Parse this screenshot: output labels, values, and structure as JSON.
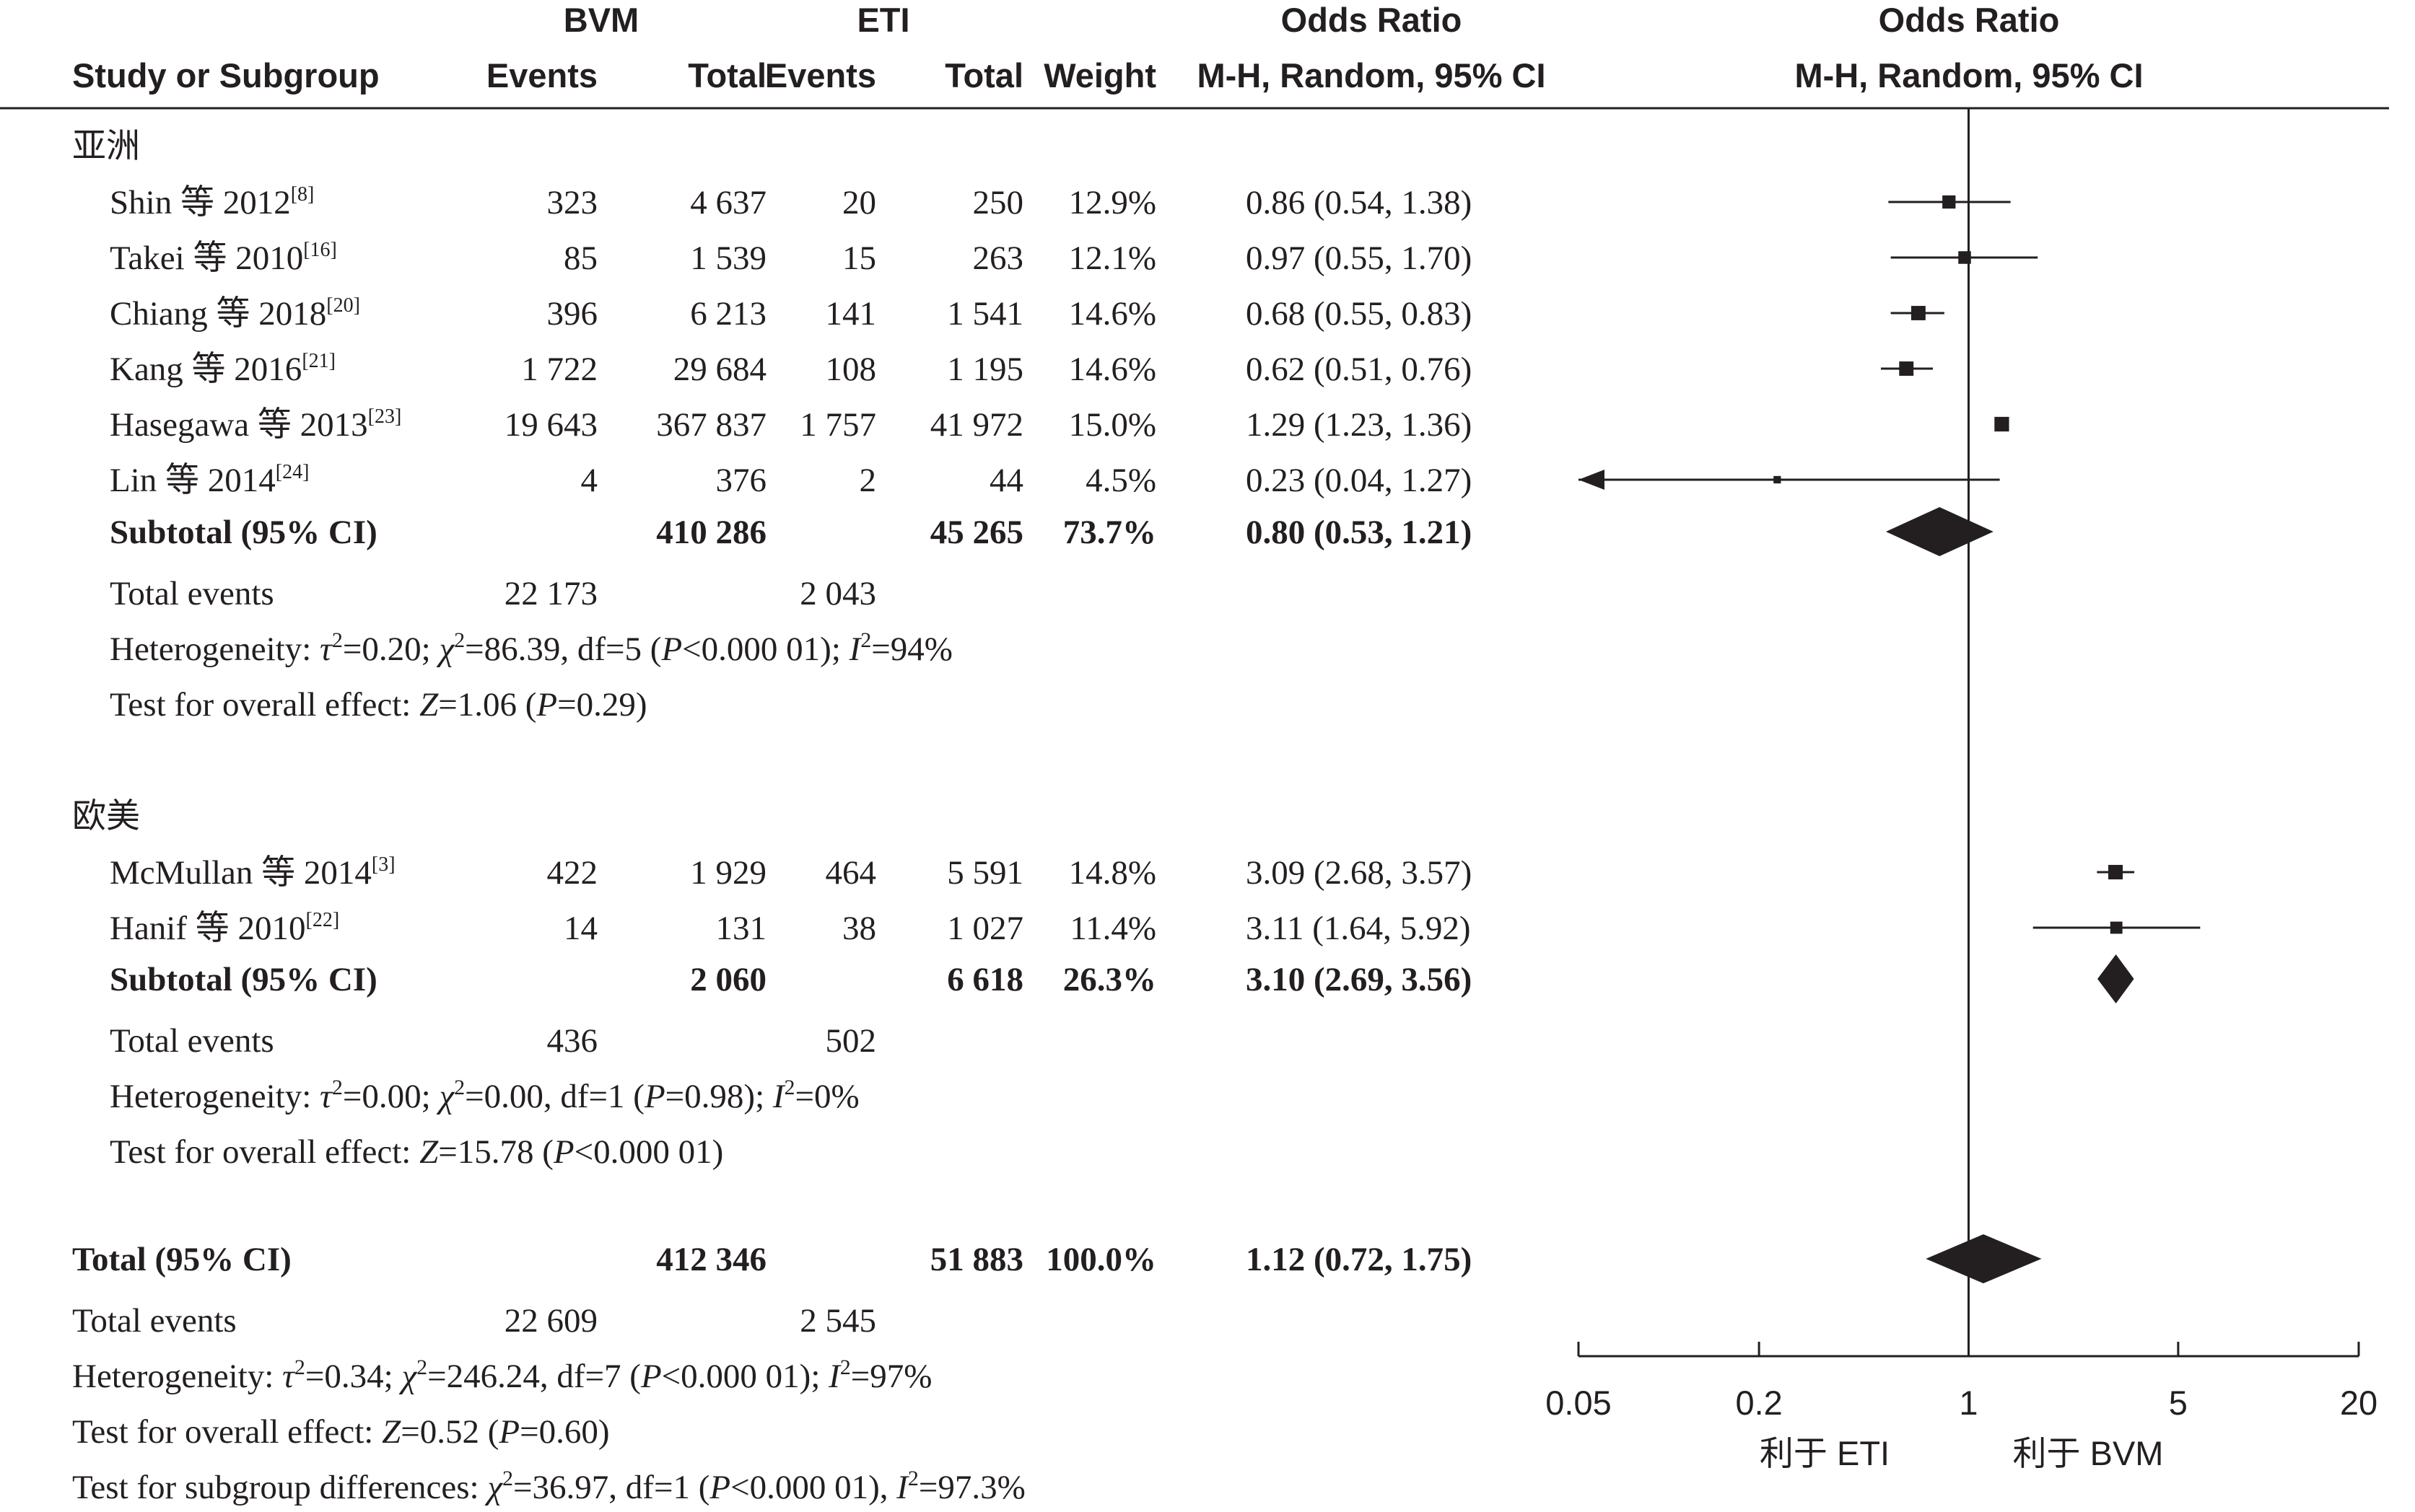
{
  "chart_data": {
    "type": "forest",
    "header": {
      "group1_name": "BVM",
      "group2_name": "ETI",
      "or_title": "Odds Ratio",
      "col_study": "Study or Subgroup",
      "col_events": "Events",
      "col_total": "Total",
      "col_weight": "Weight",
      "col_ci": "M-H, Random, 95% CI"
    },
    "subgroups": [
      {
        "name": "亚洲",
        "studies": [
          {
            "label": "Shin 等 2012",
            "ref": "[8]",
            "e1": "323",
            "t1": "4 637",
            "e2": "20",
            "t2": "250",
            "weight": "12.9%",
            "ci_text": "0.86 (0.54, 1.38)",
            "or": 0.86,
            "lo": 0.54,
            "hi": 1.38,
            "w": 12.9
          },
          {
            "label": "Takei 等 2010",
            "ref": "[16]",
            "e1": "85",
            "t1": "1 539",
            "e2": "15",
            "t2": "263",
            "weight": "12.1%",
            "ci_text": "0.97 (0.55, 1.70)",
            "or": 0.97,
            "lo": 0.55,
            "hi": 1.7,
            "w": 12.1
          },
          {
            "label": "Chiang 等 2018",
            "ref": "[20]",
            "e1": "396",
            "t1": "6 213",
            "e2": "141",
            "t2": "1 541",
            "weight": "14.6%",
            "ci_text": "0.68 (0.55, 0.83)",
            "or": 0.68,
            "lo": 0.55,
            "hi": 0.83,
            "w": 14.6
          },
          {
            "label": "Kang 等 2016",
            "ref": "[21]",
            "e1": "1 722",
            "t1": "29 684",
            "e2": "108",
            "t2": "1 195",
            "weight": "14.6%",
            "ci_text": "0.62 (0.51, 0.76)",
            "or": 0.62,
            "lo": 0.51,
            "hi": 0.76,
            "w": 14.6
          },
          {
            "label": "Hasegawa 等 2013",
            "ref": "[23]",
            "e1": "19 643",
            "t1": "367 837",
            "e2": "1 757",
            "t2": "41 972",
            "weight": "15.0%",
            "ci_text": "1.29 (1.23, 1.36)",
            "or": 1.29,
            "lo": 1.23,
            "hi": 1.36,
            "w": 15.0
          },
          {
            "label": "Lin 等 2014",
            "ref": "[24]",
            "e1": "4",
            "t1": "376",
            "e2": "2",
            "t2": "44",
            "weight": "4.5%",
            "ci_text": "0.23 (0.04, 1.27)",
            "or": 0.23,
            "lo": 0.04,
            "hi": 1.27,
            "w": 4.5
          }
        ],
        "subtotal": {
          "label": "Subtotal (95% CI)",
          "t1": "410 286",
          "t2": "45 265",
          "weight": "73.7%",
          "ci_text": "0.80 (0.53, 1.21)",
          "or": 0.8,
          "lo": 0.53,
          "hi": 1.21
        },
        "total_events": {
          "label": "Total events",
          "e1": "22 173",
          "e2": "2 043"
        },
        "heterogeneity": "Heterogeneity: τ²=0.20; χ²=86.39, df=5 (P<0.000 01); I²=94%",
        "overall_effect": "Test for overall effect: Z=1.06 (P=0.29)"
      },
      {
        "name": "欧美",
        "studies": [
          {
            "label": "McMullan 等 2014",
            "ref": "[3]",
            "e1": "422",
            "t1": "1 929",
            "e2": "464",
            "t2": "5 591",
            "weight": "14.8%",
            "ci_text": "3.09 (2.68, 3.57)",
            "or": 3.09,
            "lo": 2.68,
            "hi": 3.57,
            "w": 14.8
          },
          {
            "label": "Hanif 等 2010",
            "ref": "[22]",
            "e1": "14",
            "t1": "131",
            "e2": "38",
            "t2": "1 027",
            "weight": "11.4%",
            "ci_text": "3.11 (1.64, 5.92)",
            "or": 3.11,
            "lo": 1.64,
            "hi": 5.92,
            "w": 11.4
          }
        ],
        "subtotal": {
          "label": "Subtotal (95% CI)",
          "t1": "2 060",
          "t2": "6 618",
          "weight": "26.3%",
          "ci_text": "3.10 (2.69, 3.56)",
          "or": 3.1,
          "lo": 2.69,
          "hi": 3.56
        },
        "total_events": {
          "label": "Total events",
          "e1": "436",
          "e2": "502"
        },
        "heterogeneity": "Heterogeneity: τ²=0.00; χ²=0.00, df=1 (P=0.98); I²=0%",
        "overall_effect": "Test for overall effect: Z=15.78 (P<0.000 01)"
      }
    ],
    "total": {
      "label": "Total (95% CI)",
      "t1": "412 346",
      "t2": "51 883",
      "weight": "100.0%",
      "ci_text": "1.12 (0.72, 1.75)",
      "or": 1.12,
      "lo": 0.72,
      "hi": 1.75
    },
    "total_events": {
      "label": "Total events",
      "e1": "22 609",
      "e2": "2 545"
    },
    "heterogeneity": "Heterogeneity: τ²=0.34; χ²=246.24, df=7 (P<0.000 01); I²=97%",
    "overall_effect": "Test for overall effect: Z=0.52 (P=0.60)",
    "subgroup_differences": "Test for subgroup differences: χ²=36.97, df=1 (P<0.000 01), I²=97.3%",
    "x_axis": {
      "scale": "log",
      "range": [
        0.05,
        20
      ],
      "ticks": [
        "0.05",
        "0.2",
        "1",
        "5",
        "20"
      ],
      "reference_line": 1
    },
    "favours_left": "利于 ETI",
    "favours_right": "利于 BVM"
  }
}
